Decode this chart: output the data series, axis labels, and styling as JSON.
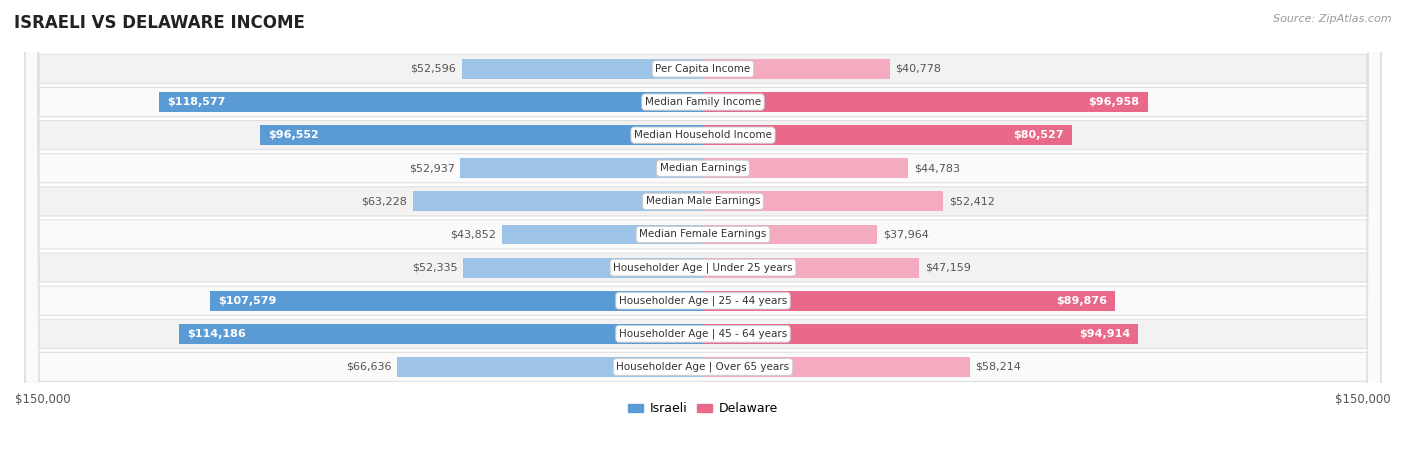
{
  "title": "ISRAELI VS DELAWARE INCOME",
  "source": "Source: ZipAtlas.com",
  "categories": [
    "Per Capita Income",
    "Median Family Income",
    "Median Household Income",
    "Median Earnings",
    "Median Male Earnings",
    "Median Female Earnings",
    "Householder Age | Under 25 years",
    "Householder Age | 25 - 44 years",
    "Householder Age | 45 - 64 years",
    "Householder Age | Over 65 years"
  ],
  "israeli_values": [
    52596,
    118577,
    96552,
    52937,
    63228,
    43852,
    52335,
    107579,
    114186,
    66636
  ],
  "delaware_values": [
    40778,
    96958,
    80527,
    44783,
    52412,
    37964,
    47159,
    89876,
    94914,
    58214
  ],
  "israeli_labels": [
    "$52,596",
    "$118,577",
    "$96,552",
    "$52,937",
    "$63,228",
    "$43,852",
    "$52,335",
    "$107,579",
    "$114,186",
    "$66,636"
  ],
  "delaware_labels": [
    "$40,778",
    "$96,958",
    "$80,527",
    "$44,783",
    "$52,412",
    "$37,964",
    "$47,159",
    "$89,876",
    "$94,914",
    "$58,214"
  ],
  "max_value": 150000,
  "israeli_color_strong": "#5B9BD5",
  "israeli_color_light": "#9DC3E6",
  "delaware_color_strong": "#E8698A",
  "delaware_color_light": "#F4AABF",
  "label_threshold": 75000,
  "background_color": "#ffffff",
  "row_bg_even": "#f2f2f2",
  "row_bg_odd": "#fafafa",
  "row_border": "#e0e0e0"
}
